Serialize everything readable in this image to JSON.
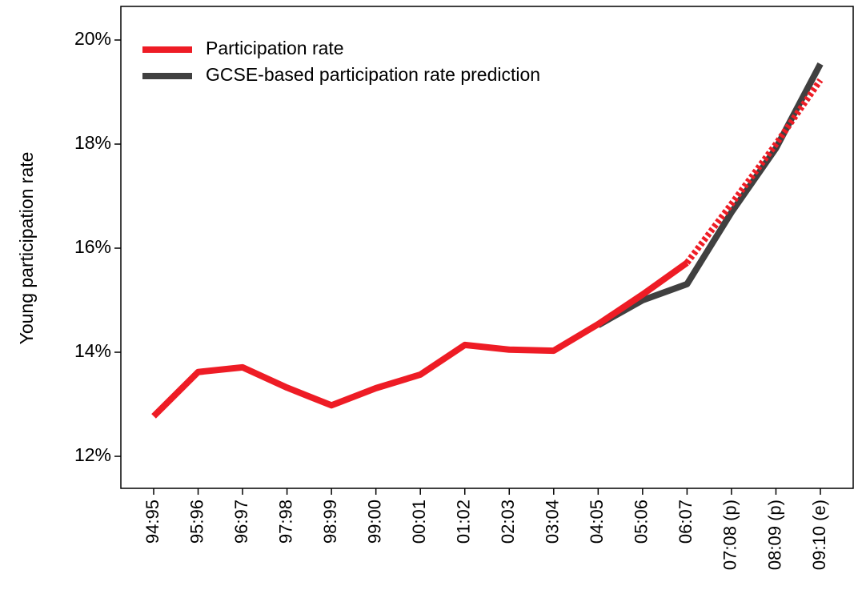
{
  "chart_data": {
    "type": "line",
    "y_label": "Young participation rate",
    "categories": [
      "94:95",
      "95:96",
      "96:97",
      "97:98",
      "98:99",
      "99:00",
      "00:01",
      "01:02",
      "02:03",
      "03:04",
      "04:05",
      "05:06",
      "06:07",
      "07:08 (p)",
      "08:09 (p)",
      "09:10 (e)"
    ],
    "series": [
      {
        "name": "GCSE-based participation rate prediction",
        "color": "#404040",
        "values": [
          null,
          null,
          null,
          null,
          null,
          null,
          null,
          null,
          null,
          null,
          14.52,
          15.0,
          15.31,
          16.69,
          17.92,
          19.54
        ]
      },
      {
        "name": "Participation rate",
        "color": "#ee1c25",
        "dashed_from": "06:07",
        "values": [
          12.77,
          13.62,
          13.71,
          13.32,
          12.98,
          13.31,
          13.57,
          14.14,
          14.05,
          14.03,
          14.54,
          15.11,
          15.72,
          16.85,
          18.0,
          19.23
        ]
      }
    ],
    "ylim": [
      11.385,
      20.646
    ],
    "yticks": [
      {
        "value": 12,
        "label": "12%"
      },
      {
        "value": 14,
        "label": "14%"
      },
      {
        "value": 16,
        "label": "16%"
      },
      {
        "value": 18,
        "label": "18%"
      },
      {
        "value": 20,
        "label": "20%"
      }
    ],
    "legend": "top-left"
  }
}
